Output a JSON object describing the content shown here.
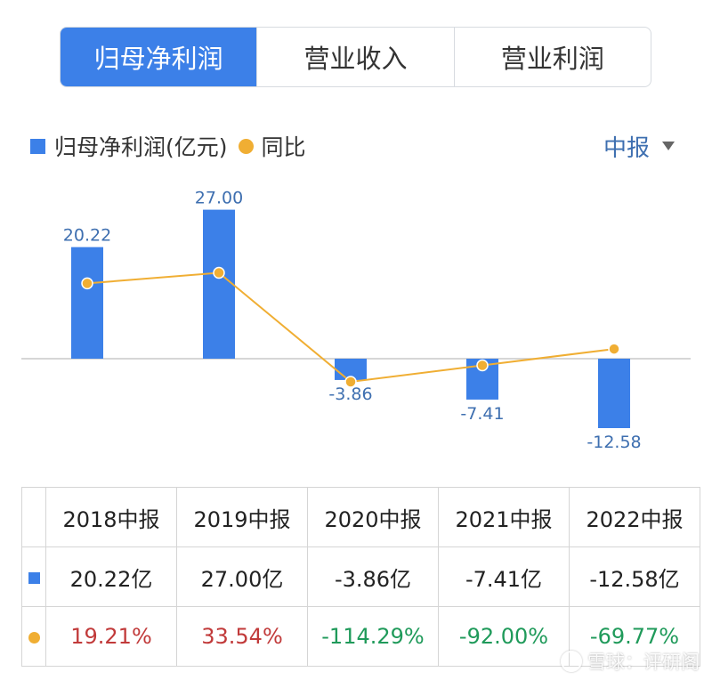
{
  "tabs": [
    {
      "label": "归母净利润",
      "active": true
    },
    {
      "label": "营业收入",
      "active": false
    },
    {
      "label": "营业利润",
      "active": false
    }
  ],
  "legend": {
    "bar_label": "归母净利润(亿元)",
    "line_label": "同比"
  },
  "period": {
    "label": "中报"
  },
  "colors": {
    "bar": "#3c80e8",
    "line": "#f0ae33",
    "positive": "#c13a3a",
    "negative": "#1f9a5a"
  },
  "chart_data": {
    "type": "bar",
    "categories": [
      "2018中报",
      "2019中报",
      "2020中报",
      "2021中报",
      "2022中报"
    ],
    "series": [
      {
        "name": "归母净利润(亿元)",
        "type": "bar",
        "values": [
          20.22,
          27.0,
          -3.86,
          -7.41,
          -12.58
        ]
      },
      {
        "name": "同比",
        "type": "line",
        "values": [
          19.21,
          33.54,
          -114.29,
          -92.0,
          -69.77
        ]
      }
    ],
    "bar_value_labels": [
      "20.22",
      "27.00",
      "-3.86",
      "-7.41",
      "-12.58"
    ],
    "line_ylim": [
      -200,
      150
    ]
  },
  "table": {
    "headers": [
      "2018中报",
      "2019中报",
      "2020中报",
      "2021中报",
      "2022中报"
    ],
    "profit_row": [
      "20.22亿",
      "27.00亿",
      "-3.86亿",
      "-7.41亿",
      "-12.58亿"
    ],
    "yoy_row": [
      "19.21%",
      "33.54%",
      "-114.29%",
      "-92.00%",
      "-69.77%"
    ]
  },
  "watermark": {
    "text": "雪球：评研阁"
  }
}
